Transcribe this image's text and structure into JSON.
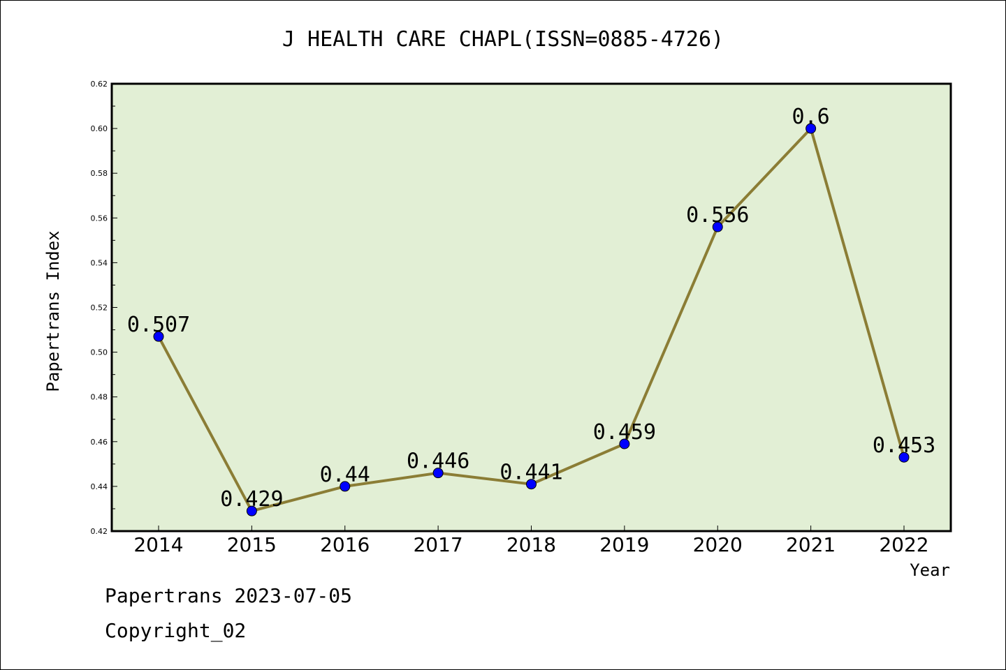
{
  "chart_data": {
    "type": "line",
    "title": "J HEALTH CARE CHAPL(ISSN=0885-4726)",
    "xlabel": "Year",
    "ylabel": "Papertrans Index",
    "categories": [
      "2014",
      "2015",
      "2016",
      "2017",
      "2018",
      "2019",
      "2020",
      "2021",
      "2022"
    ],
    "values": [
      0.507,
      0.429,
      0.44,
      0.446,
      0.441,
      0.459,
      0.556,
      0.6,
      0.453
    ],
    "data_labels": [
      "0.507",
      "0.429",
      "0.44",
      "0.446",
      "0.441",
      "0.459",
      "0.556",
      "0.6",
      "0.453"
    ],
    "ylim": [
      0.42,
      0.62
    ],
    "y_ticks": [
      "0.42",
      "0.44",
      "0.46",
      "0.48",
      "0.50",
      "0.52",
      "0.54",
      "0.56",
      "0.58",
      "0.60",
      "0.62"
    ],
    "grid": false,
    "colors": {
      "plot_background": "#e2efd5",
      "line": "#8b7d35",
      "marker": "#0000ff"
    }
  },
  "footer": {
    "line1": "Papertrans 2023-07-05",
    "line2": "Copyright_02"
  }
}
